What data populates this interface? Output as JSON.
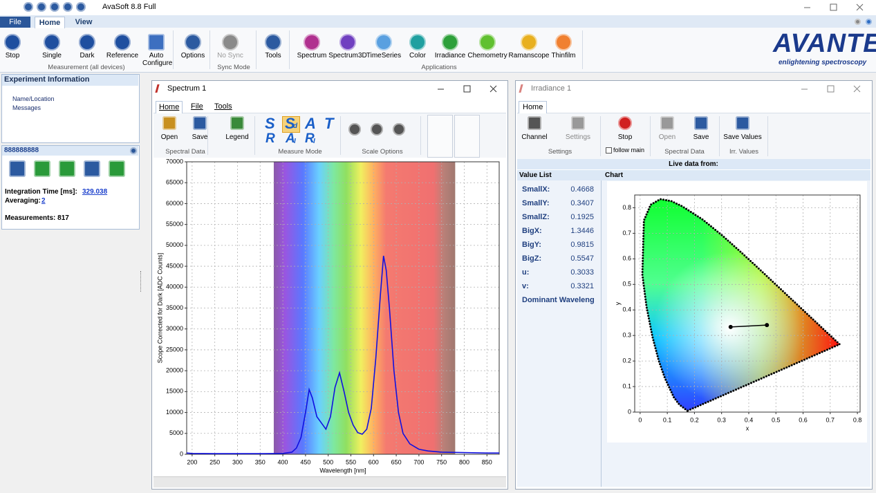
{
  "title_bar": {
    "title": "AvaSoft 8.8 Full"
  },
  "menu_tabs": [
    "File",
    "Home",
    "View"
  ],
  "ribbon": {
    "buttons": [
      "Stop",
      "Single",
      "Dark",
      "Reference",
      "Auto Configure",
      "Options",
      "No Sync",
      "Tools",
      "Spectrum",
      "Spectrum3D",
      "TimeSeries",
      "Color",
      "Irradiance",
      "Chemometry",
      "Ramanscope",
      "Thinfilm"
    ],
    "groups": [
      "Measurement (all devices)",
      "Sync Mode",
      "Applications"
    ]
  },
  "brand": {
    "name": "AVANTES",
    "tagline": "enlightening spectroscopy"
  },
  "experiment_panel": {
    "title": "Experiment Information",
    "items": [
      "Name/Location",
      "Messages"
    ]
  },
  "device_panel": {
    "name": "888888888",
    "integration_time_label": "Integration Time  [ms]:",
    "integration_time": "329.038",
    "averaging_label": "Averaging:",
    "averaging": "2",
    "measurements": "Measurements: 817"
  },
  "spectrum_window": {
    "title": "Spectrum 1",
    "tabs": [
      "Home",
      "File",
      "Tools"
    ],
    "buttons": [
      "Open",
      "Save",
      "Legend"
    ],
    "measure_modes": [
      {
        "text": "S"
      },
      {
        "text": "S",
        "sub": "d"
      },
      {
        "text": "A"
      },
      {
        "text": "T"
      },
      {
        "text": "R"
      },
      {
        "text": "A",
        "sub": "I"
      },
      {
        "text": "R",
        "sub": "I"
      }
    ],
    "groups": [
      "Spectral Data",
      "Measure Mode",
      "Scale Options"
    ]
  },
  "irradiance_window": {
    "title": "Irradiance 1",
    "tabs": [
      "Home"
    ],
    "buttons": [
      "Channel",
      "Settings",
      "Stop",
      "Open",
      "Save",
      "Save Values"
    ],
    "follow_main": "follow main",
    "groups": [
      "Settings",
      "Spectral Data",
      "Irr. Values"
    ],
    "live_data": "Live data from:",
    "value_list_title": "Value List",
    "chart_title": "Chart",
    "values": [
      [
        "SmallX:",
        "0.4668"
      ],
      [
        "SmallY:",
        "0.3407"
      ],
      [
        "SmallZ:",
        "0.1925"
      ],
      [
        "BigX:",
        "1.3446"
      ],
      [
        "BigY:",
        "0.9815"
      ],
      [
        "BigZ:",
        "0.5547"
      ],
      [
        "u:",
        "0.3033"
      ],
      [
        "v:",
        "0.3321"
      ]
    ],
    "dominant": "Dominant Waveleng"
  },
  "chart_data": [
    {
      "type": "line",
      "x_label": "Wavelength [nm]",
      "y_label": "Scope Corrected for Dark [ADC Counts]",
      "x": [
        188,
        200,
        250,
        300,
        350,
        400,
        420,
        430,
        440,
        450,
        458,
        465,
        475,
        485,
        495,
        505,
        515,
        525,
        535,
        545,
        555,
        565,
        575,
        585,
        595,
        605,
        615,
        622,
        628,
        635,
        645,
        655,
        665,
        680,
        700,
        720,
        750,
        800,
        850,
        877
      ],
      "values": [
        300,
        200,
        150,
        150,
        150,
        200,
        500,
        1500,
        4000,
        10000,
        15500,
        13500,
        9000,
        7500,
        6000,
        9000,
        16000,
        19500,
        15000,
        10000,
        7000,
        5200,
        4800,
        6000,
        11000,
        23000,
        38000,
        47500,
        44000,
        35000,
        20000,
        10000,
        5000,
        2500,
        1200,
        800,
        500,
        400,
        300,
        300
      ],
      "color": "#1010e0",
      "xlim": [
        188,
        877
      ],
      "ylim": [
        0,
        70000
      ],
      "xticks": [
        200,
        250,
        300,
        350,
        400,
        450,
        500,
        550,
        600,
        650,
        700,
        750,
        800,
        850
      ],
      "yticks": [
        0,
        5000,
        10000,
        15000,
        20000,
        25000,
        30000,
        35000,
        40000,
        45000,
        50000,
        55000,
        60000,
        65000,
        70000
      ],
      "grid": true,
      "shaded_range": [
        380,
        780
      ]
    },
    {
      "type": "line",
      "x_label": "x",
      "y_label": "y",
      "x": [
        0.3333,
        0.4668
      ],
      "values": [
        0.3333,
        0.3407
      ],
      "color": "#000000",
      "markers": true,
      "xlim": [
        -0.02,
        0.81
      ],
      "ylim": [
        0,
        0.85
      ],
      "xticks": [
        0,
        0.1,
        0.2,
        0.3,
        0.4,
        0.5,
        0.6,
        0.7,
        0.8
      ],
      "yticks": [
        0,
        0.1,
        0.2,
        0.3,
        0.4,
        0.5,
        0.6,
        0.7,
        0.8
      ],
      "grid": true,
      "locus": {
        "x": [
          0.1741,
          0.144,
          0.1241,
          0.0913,
          0.0687,
          0.0454,
          0.0235,
          0.0082,
          0.0139,
          0.0389,
          0.0743,
          0.1142,
          0.1547,
          0.2296,
          0.3016,
          0.3731,
          0.4441,
          0.5125,
          0.5752,
          0.627,
          0.6915,
          0.7347
        ],
        "y": [
          0.005,
          0.0297,
          0.0578,
          0.1327,
          0.2007,
          0.295,
          0.4127,
          0.5384,
          0.7502,
          0.812,
          0.8338,
          0.8262,
          0.8059,
          0.7543,
          0.6923,
          0.6245,
          0.5547,
          0.4866,
          0.4242,
          0.3725,
          0.3083,
          0.2653
        ]
      }
    }
  ]
}
